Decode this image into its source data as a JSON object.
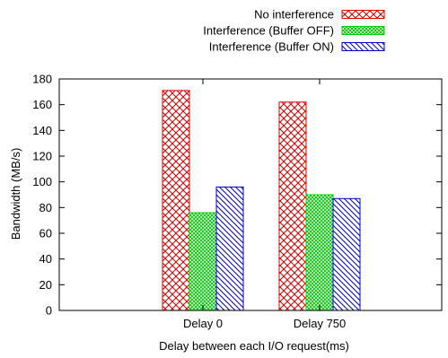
{
  "chart_data": {
    "type": "bar",
    "title": "",
    "xlabel": "Delay between each I/O request(ms)",
    "ylabel": "Bandwidth (MB/s)",
    "ylim": [
      0,
      180
    ],
    "yticks": [
      0,
      20,
      40,
      60,
      80,
      100,
      120,
      140,
      160,
      180
    ],
    "categories": [
      "Delay 0",
      "Delay 750"
    ],
    "series": [
      {
        "name": "No interference",
        "values": [
          171,
          162
        ],
        "color": "#dd0000",
        "pattern": "crosshatch"
      },
      {
        "name": "Interference (Buffer OFF)",
        "values": [
          76,
          90
        ],
        "color": "#00cc00",
        "pattern": "crosshatch-dense"
      },
      {
        "name": "Interference (Buffer ON)",
        "values": [
          96,
          87
        ],
        "color": "#0000cc",
        "pattern": "diagonal"
      }
    ],
    "legend_position": "top-right",
    "grid": false
  }
}
